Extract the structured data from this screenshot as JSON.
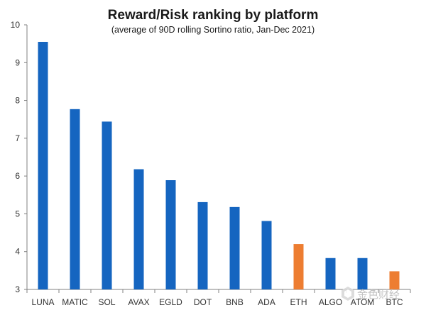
{
  "chart_data": {
    "type": "bar",
    "title": "Reward/Risk ranking by platform",
    "subtitle": "(average of 90D rolling Sortino ratio, Jan-Dec 2021)",
    "categories": [
      "LUNA",
      "MATIC",
      "SOL",
      "AVAX",
      "EGLD",
      "DOT",
      "BNB",
      "ADA",
      "ETH",
      "ALGO",
      "ATOM",
      "BTC"
    ],
    "values": [
      9.55,
      7.77,
      7.44,
      6.18,
      5.89,
      5.31,
      5.18,
      4.81,
      4.2,
      3.83,
      3.83,
      3.48
    ],
    "colors": [
      "#1565c0",
      "#1565c0",
      "#1565c0",
      "#1565c0",
      "#1565c0",
      "#1565c0",
      "#1565c0",
      "#1565c0",
      "#ed7d31",
      "#1565c0",
      "#1565c0",
      "#ed7d31"
    ],
    "ylim": [
      3,
      10
    ],
    "yticks": [
      "3",
      "4",
      "5",
      "6",
      "7",
      "8",
      "9",
      "10"
    ],
    "grid": false,
    "legend": "none"
  },
  "watermark": {
    "text": "金色财经",
    "icon": "golden-finance-logo-icon"
  }
}
